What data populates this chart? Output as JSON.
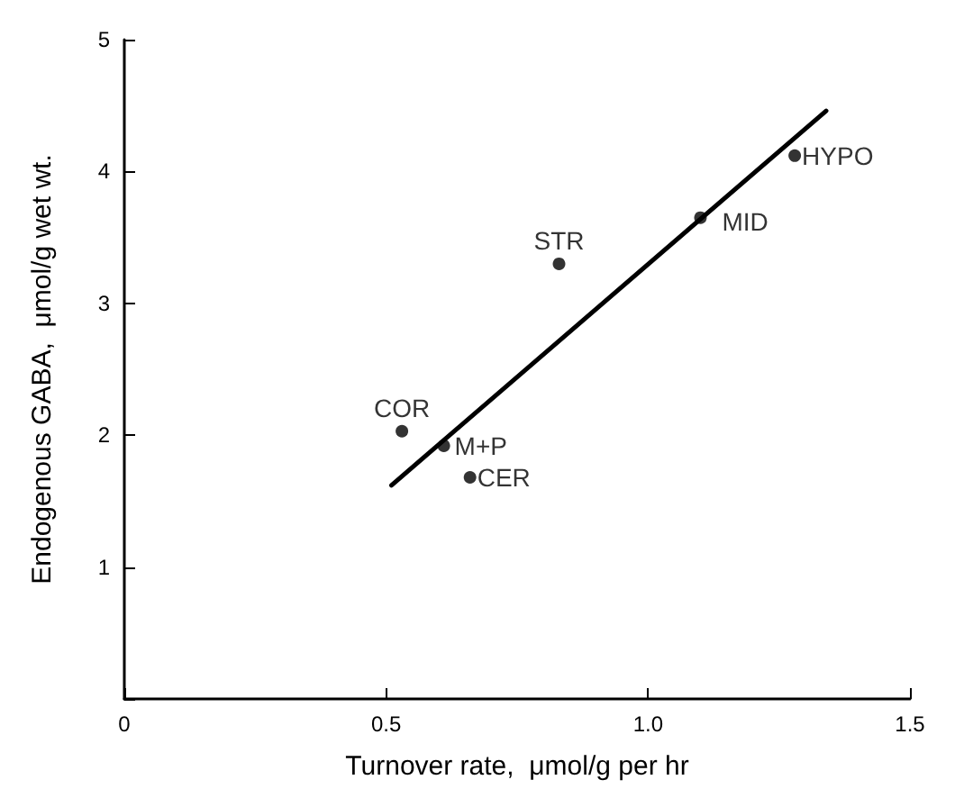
{
  "chart_data": {
    "type": "scatter",
    "xlabel": "Turnover rate,  μmol/g per hr",
    "ylabel": "Endogenous GABA,  μmol/g wet wt.",
    "xlim": [
      0,
      1.5
    ],
    "xticks": [
      0,
      0.5,
      {
        "value": 1.0,
        "label": "1.0"
      },
      1.5
    ],
    "ylim": [
      0,
      5
    ],
    "yticks": [
      {
        "value": 0,
        "label": null
      },
      1,
      2,
      3,
      4,
      5
    ],
    "grid": false,
    "marker": "circle",
    "series": [
      {
        "type": "scatter",
        "color": "#000000",
        "x": [
          1.28,
          1.1,
          0.83,
          0.53,
          0.61,
          0.66
        ],
        "values": [
          4.12,
          3.65,
          3.3,
          2.03,
          1.92,
          1.68
        ]
      },
      {
        "type": "line",
        "color": "#000000",
        "line_style": "solid",
        "marker": "none",
        "x": [
          0.51,
          1.34
        ],
        "values": [
          1.62,
          4.46
        ]
      }
    ],
    "annotations": [
      {
        "text": "HYPO",
        "x": 1.28,
        "y": 4.12
      },
      {
        "text": "MID",
        "x": 1.1,
        "y": 3.65
      },
      {
        "text": "STR",
        "x": 0.83,
        "y": 3.3
      },
      {
        "text": "COR",
        "x": 0.53,
        "y": 2.03
      },
      {
        "text": "M+P",
        "x": 0.61,
        "y": 1.92
      },
      {
        "text": "CER",
        "x": 0.66,
        "y": 1.68
      }
    ]
  }
}
